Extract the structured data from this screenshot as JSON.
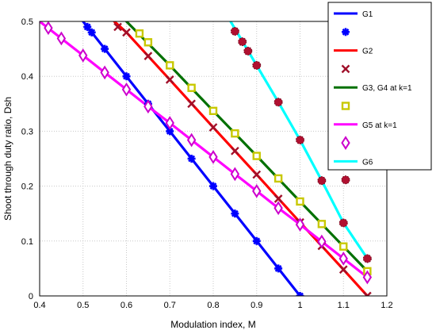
{
  "chart_data": {
    "type": "line",
    "title": "",
    "xlabel": "Modulation index, M",
    "ylabel": "Shoot through duty ratio, Dsh",
    "xlim": [
      0.4,
      1.2
    ],
    "ylim": [
      0,
      0.5
    ],
    "xticks": [
      0.4,
      0.5,
      0.6,
      0.7,
      0.8,
      0.9,
      1.0,
      1.1,
      1.2
    ],
    "xtick_labels": [
      "0.4",
      "0.5",
      "0.6",
      "0.7",
      "0.8",
      "0.9",
      "1",
      "1.1",
      "1.2"
    ],
    "yticks": [
      0,
      0.1,
      0.2,
      0.3,
      0.4,
      0.5
    ],
    "ytick_labels": [
      "0",
      "0.1",
      "0.2",
      "0.3",
      "0.4",
      "0.5"
    ],
    "grid": true,
    "legend_position": "top-right",
    "series": [
      {
        "name": "G1",
        "style": "line",
        "color": "#0000ff",
        "x": [
          0.5,
          0.6,
          0.7,
          0.8,
          0.9,
          1.0
        ],
        "y": [
          0.5,
          0.4,
          0.3,
          0.2,
          0.1,
          0.0
        ]
      },
      {
        "name": "",
        "style": "marker",
        "marker": "asterisk",
        "color": "#0000ff",
        "x": [
          0.51,
          0.52,
          0.55,
          0.6,
          0.65,
          0.7,
          0.75,
          0.8,
          0.85,
          0.9,
          0.95,
          1.0
        ],
        "y": [
          0.49,
          0.48,
          0.45,
          0.4,
          0.35,
          0.3,
          0.25,
          0.2,
          0.15,
          0.1,
          0.05,
          0.0
        ]
      },
      {
        "name": "G2",
        "style": "line",
        "color": "#ff0000",
        "x": [
          0.572,
          0.6,
          0.7,
          0.8,
          0.9,
          1.0,
          1.1,
          1.155
        ],
        "y": [
          0.5,
          0.48,
          0.394,
          0.307,
          0.221,
          0.134,
          0.048,
          0.0
        ]
      },
      {
        "name": "",
        "style": "marker",
        "marker": "x",
        "color": "#a0102a",
        "x": [
          0.58,
          0.6,
          0.65,
          0.7,
          0.75,
          0.8,
          0.85,
          0.9,
          0.95,
          1.0,
          1.05,
          1.1,
          1.155
        ],
        "y": [
          0.49,
          0.48,
          0.437,
          0.394,
          0.35,
          0.307,
          0.264,
          0.221,
          0.177,
          0.134,
          0.091,
          0.048,
          0.0
        ]
      },
      {
        "name": "G3, G4 at k=1",
        "style": "line",
        "color": "#007000",
        "x": [
          0.6,
          0.7,
          0.8,
          0.9,
          1.0,
          1.1,
          1.155
        ],
        "y": [
          0.5,
          0.42,
          0.337,
          0.255,
          0.172,
          0.09,
          0.045
        ]
      },
      {
        "name": "",
        "style": "marker",
        "marker": "square",
        "color": "#c8c800",
        "x": [
          0.63,
          0.65,
          0.7,
          0.75,
          0.8,
          0.85,
          0.9,
          0.95,
          1.0,
          1.05,
          1.1,
          1.155
        ],
        "y": [
          0.478,
          0.462,
          0.42,
          0.379,
          0.337,
          0.296,
          0.255,
          0.214,
          0.172,
          0.131,
          0.09,
          0.045
        ]
      },
      {
        "name": "G5 at k=1",
        "style": "line",
        "color": "#ff00ff",
        "x": [
          0.4,
          0.45,
          0.5,
          0.55,
          0.6,
          0.65,
          0.7,
          0.75,
          0.8,
          0.85,
          0.9,
          0.95,
          1.0,
          1.05,
          1.1,
          1.155
        ],
        "y": [
          0.5,
          0.469,
          0.438,
          0.407,
          0.376,
          0.345,
          0.315,
          0.284,
          0.253,
          0.222,
          0.191,
          0.16,
          0.13,
          0.099,
          0.068,
          0.034
        ]
      },
      {
        "name": "",
        "style": "marker",
        "marker": "diamond",
        "color": "#cc00cc",
        "x": [
          0.42,
          0.45,
          0.5,
          0.55,
          0.6,
          0.65,
          0.7,
          0.75,
          0.8,
          0.85,
          0.9,
          0.95,
          1.0,
          1.05,
          1.1,
          1.155
        ],
        "y": [
          0.488,
          0.469,
          0.438,
          0.407,
          0.376,
          0.345,
          0.315,
          0.284,
          0.253,
          0.222,
          0.191,
          0.16,
          0.13,
          0.099,
          0.068,
          0.034
        ]
      },
      {
        "name": "G6",
        "style": "line",
        "color": "#00ffff",
        "x": [
          0.84,
          0.9,
          0.95,
          1.0,
          1.05,
          1.1,
          1.155
        ],
        "y": [
          0.5,
          0.42,
          0.353,
          0.284,
          0.21,
          0.133,
          0.068
        ]
      },
      {
        "name": "",
        "style": "marker",
        "marker": "octagon",
        "color": "#b01030",
        "x": [
          0.85,
          0.867,
          0.88,
          0.9,
          0.95,
          1.0,
          1.05,
          1.1,
          1.155
        ],
        "y": [
          0.482,
          0.463,
          0.446,
          0.42,
          0.353,
          0.284,
          0.21,
          0.133,
          0.068
        ]
      }
    ]
  }
}
